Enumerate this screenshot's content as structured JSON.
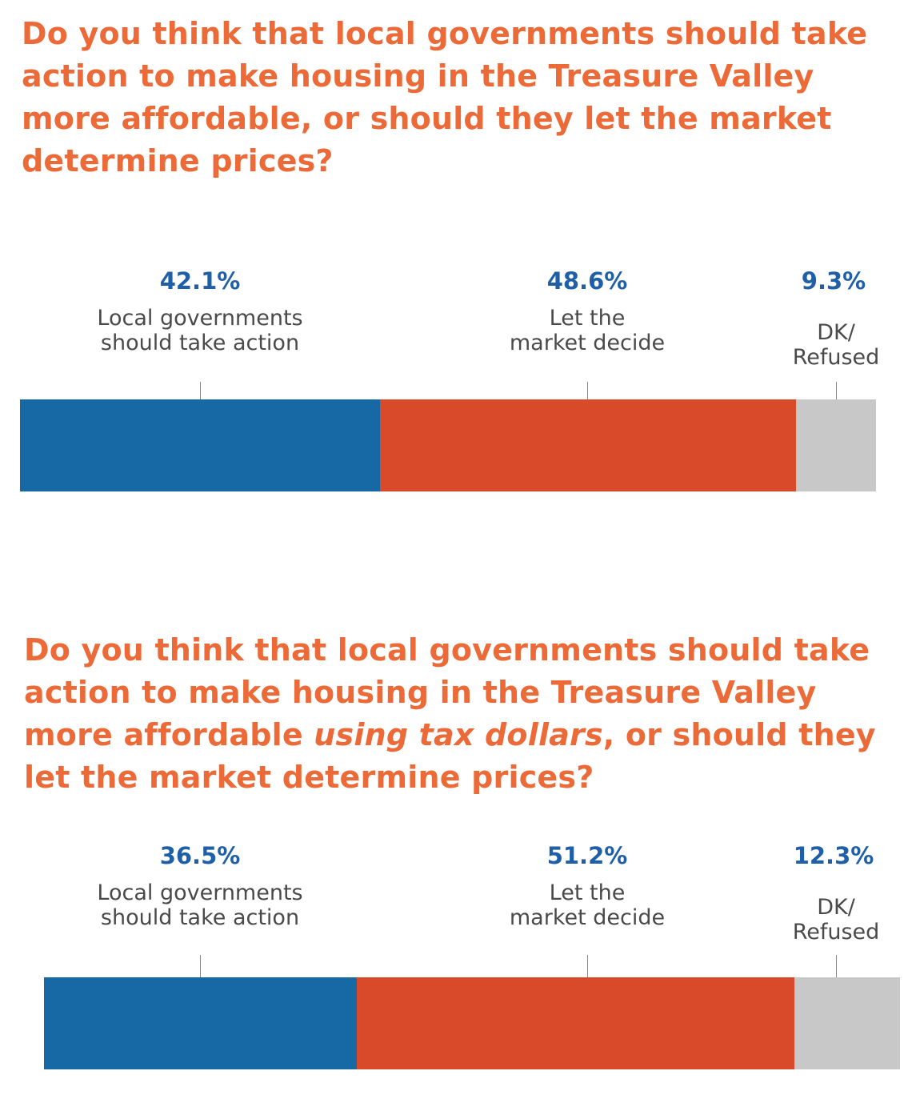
{
  "chart_data": [
    {
      "type": "bar",
      "orientation": "horizontal-stacked",
      "title_parts": [
        {
          "text": "Do you think that local governments should take action to make housing in the Treasure Valley more affordable, or should they let the market determine prices?",
          "italic": false
        }
      ],
      "xlim": [
        0,
        100
      ],
      "segments": [
        {
          "name": "Local governments should take action",
          "label_lines": [
            "Local governments",
            "should take action"
          ],
          "value": 42.1,
          "value_label": "42.1%",
          "color": "#1769a6"
        },
        {
          "name": "Let the market decide",
          "label_lines": [
            "Let the",
            "market decide"
          ],
          "value": 48.6,
          "value_label": "48.6%",
          "color": "#d84a2a"
        },
        {
          "name": "DK/Refused",
          "label_lines": [
            "DK/",
            "Refused"
          ],
          "value": 9.3,
          "value_label": "9.3%",
          "color": "#c8c8c8"
        }
      ]
    },
    {
      "type": "bar",
      "orientation": "horizontal-stacked",
      "title_parts": [
        {
          "text": "Do you think that local governments should take action to make housing in the Treasure Valley more affordable ",
          "italic": false
        },
        {
          "text": "using tax dollars",
          "italic": true
        },
        {
          "text": ", or should they let the market determine prices?",
          "italic": false
        }
      ],
      "xlim": [
        0,
        100
      ],
      "segments": [
        {
          "name": "Local governments should take action",
          "label_lines": [
            "Local governments",
            "should take action"
          ],
          "value": 36.5,
          "value_label": "36.5%",
          "color": "#1769a6"
        },
        {
          "name": "Let the market decide",
          "label_lines": [
            "Let the",
            "market decide"
          ],
          "value": 51.2,
          "value_label": "51.2%",
          "color": "#d84a2a"
        },
        {
          "name": "DK/Refused",
          "label_lines": [
            "DK/",
            "Refused"
          ],
          "value": 12.3,
          "value_label": "12.3%",
          "color": "#c8c8c8"
        }
      ]
    }
  ]
}
